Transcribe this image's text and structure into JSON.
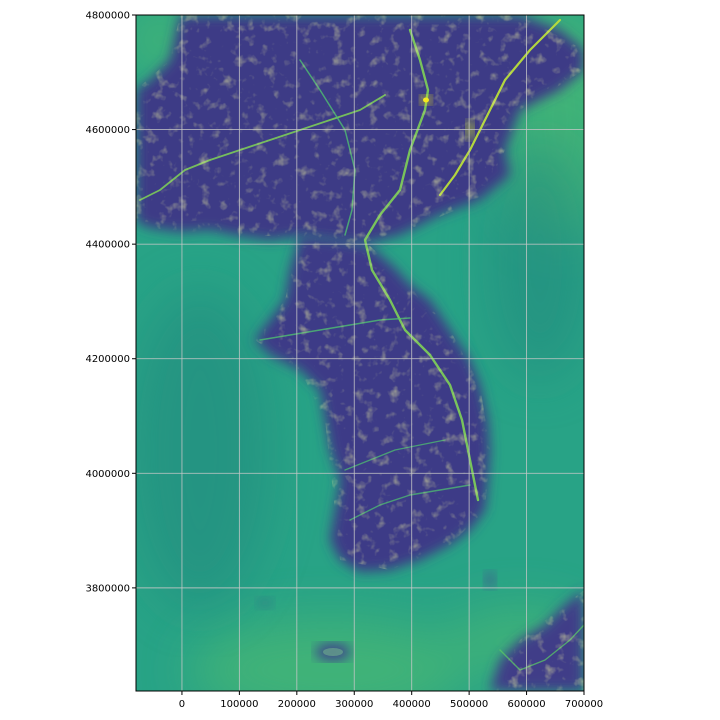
{
  "figure": {
    "type": "raster-map-with-axes",
    "colormap": "viridis",
    "grid": true,
    "grid_color": "#c8c8c8",
    "frame_color": "#000000"
  },
  "axes": {
    "x": {
      "ticks": [
        0,
        100000,
        200000,
        300000,
        400000,
        500000,
        600000,
        700000
      ],
      "tick_labels": [
        "0",
        "100000",
        "200000",
        "300000",
        "400000",
        "500000",
        "600000",
        "700000"
      ],
      "range": [
        -80000,
        700000
      ]
    },
    "y": {
      "ticks": [
        3800000,
        4000000,
        4200000,
        4400000,
        4600000,
        4800000
      ],
      "tick_labels": [
        "3800000",
        "4000000",
        "4200000",
        "4400000",
        "4600000",
        "4800000"
      ],
      "range": [
        3620000,
        4800000
      ]
    }
  },
  "colors": {
    "sea_green": "#2aa483",
    "land_purple": "#3e3a86",
    "ridge_yellow": "#d9e030",
    "shallow_green": "#4fbe6a"
  }
}
